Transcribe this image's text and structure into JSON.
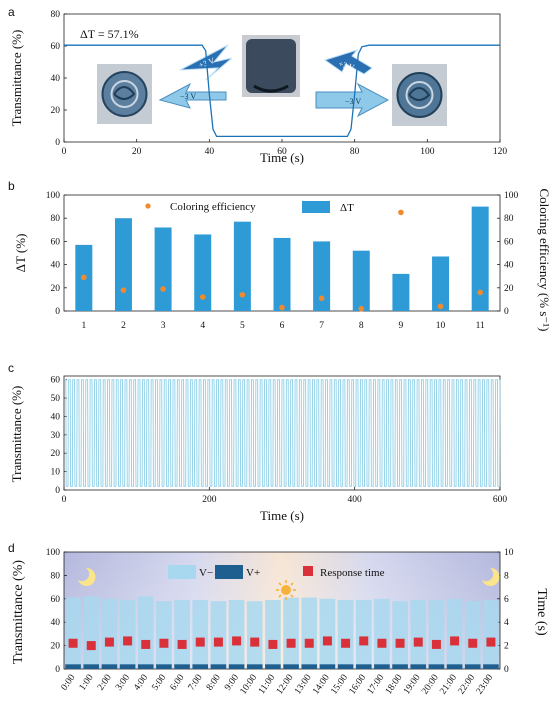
{
  "colors": {
    "blue": "#2f9bd6",
    "orange": "#f08a2c",
    "light_blue": "#a8d8ef",
    "dark_blue": "#1f5f8f",
    "red": "#d9303a",
    "line_blue": "#1a73b8",
    "cycle_blue": "#8ccfe8"
  },
  "panels": {
    "a": "a",
    "b": "b",
    "c": "c",
    "d": "d"
  },
  "chart_data": [
    {
      "panel": "a",
      "type": "line",
      "title": "",
      "xlabel": "Time (s)",
      "ylabel": "Transmittance (%)",
      "xlim": [
        0,
        120
      ],
      "ylim": [
        0,
        80
      ],
      "xticks": [
        0,
        20,
        40,
        60,
        80,
        100,
        120
      ],
      "yticks": [
        0,
        20,
        40,
        60,
        80
      ],
      "annotation": "ΔT = 57.1%",
      "voltage_labels": [
        "+3 V",
        "−3 V",
        "+3 V",
        "−3 V"
      ],
      "series": [
        {
          "x": [
            0,
            38,
            39,
            40,
            41,
            42,
            45,
            78,
            79,
            80,
            81,
            82,
            84,
            120
          ],
          "y": [
            60.5,
            60.5,
            57,
            30,
            8,
            3.5,
            3.5,
            3.5,
            8,
            30,
            55,
            59.5,
            60.5,
            60.5
          ]
        }
      ]
    },
    {
      "panel": "b",
      "type": "bar",
      "xlabel": "",
      "ylabel": "ΔT (%)",
      "ylabel_right": "Coloring efficiency (% s⁻¹)",
      "categories": [
        "1",
        "2",
        "3",
        "4",
        "5",
        "6",
        "7",
        "8",
        "9",
        "10",
        "11"
      ],
      "ylim": [
        0,
        100
      ],
      "ylim_right": [
        0,
        100
      ],
      "yticks": [
        0,
        20,
        40,
        60,
        80,
        100
      ],
      "legend": "top",
      "series": [
        {
          "name": "ΔT",
          "values": [
            57,
            80,
            72,
            66,
            77,
            63,
            60,
            52,
            32,
            47,
            90
          ]
        },
        {
          "name": "Coloring efficiency",
          "values": [
            29,
            18,
            19,
            12,
            14,
            3,
            11,
            2,
            85,
            4,
            16
          ]
        }
      ]
    },
    {
      "panel": "c",
      "type": "line",
      "xlabel": "Time (s)",
      "ylabel": "Transmittance (%)",
      "xlim": [
        0,
        600
      ],
      "ylim": [
        0,
        62
      ],
      "xticks": [
        0,
        200,
        400,
        600
      ],
      "yticks": [
        0,
        10,
        20,
        30,
        40,
        50,
        60
      ],
      "cycles": 100,
      "high": 60,
      "low": 2
    },
    {
      "panel": "d",
      "type": "bar",
      "xlabel": "",
      "ylabel": "Transmittance (%)",
      "ylabel_right": "Time (s)",
      "categories": [
        "0:00",
        "1:00",
        "2:00",
        "3:00",
        "4:00",
        "5:00",
        "6:00",
        "7:00",
        "8:00",
        "9:00",
        "10:00",
        "11:00",
        "12:00",
        "13:00",
        "14:00",
        "15:00",
        "16:00",
        "17:00",
        "18:00",
        "19:00",
        "20:00",
        "21:00",
        "22:00",
        "23:00"
      ],
      "ylim": [
        0,
        100
      ],
      "ylim_right": [
        0,
        10
      ],
      "yticks": [
        0,
        20,
        40,
        60,
        80,
        100
      ],
      "yticks_right": [
        0,
        2,
        4,
        6,
        8,
        10
      ],
      "legend": "top",
      "series": [
        {
          "name": "V−",
          "values": [
            61,
            62,
            60,
            59,
            62,
            58,
            59,
            59,
            58,
            59,
            58,
            59,
            61,
            61,
            60,
            59,
            59,
            60,
            58,
            59,
            59,
            60,
            58,
            59
          ]
        },
        {
          "name": "V+",
          "values": [
            4,
            4,
            4,
            4,
            4,
            4,
            4,
            4,
            4,
            4,
            4,
            4,
            4,
            4,
            4,
            4,
            4,
            4,
            4,
            4,
            4,
            4,
            4,
            4
          ]
        },
        {
          "name": "Response time",
          "values": [
            2.2,
            2.0,
            2.3,
            2.4,
            2.1,
            2.2,
            2.1,
            2.3,
            2.3,
            2.4,
            2.3,
            2.1,
            2.2,
            2.2,
            2.4,
            2.2,
            2.4,
            2.2,
            2.2,
            2.3,
            2.1,
            2.4,
            2.2,
            2.3
          ]
        }
      ]
    }
  ]
}
